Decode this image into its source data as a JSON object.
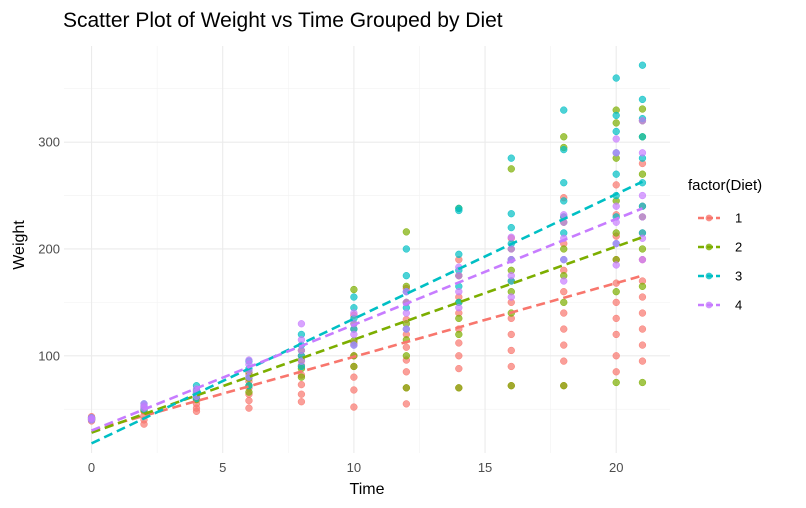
{
  "chart_data": {
    "type": "scatter",
    "title": "Scatter Plot of Weight vs Time Grouped by Diet",
    "xlabel": "Time",
    "ylabel": "Weight",
    "xlim": [
      -1.05,
      22.05
    ],
    "ylim": [
      9,
      390
    ],
    "x_ticks": [
      0,
      5,
      10,
      15,
      20
    ],
    "y_ticks": [
      100,
      200,
      300
    ],
    "grid": true,
    "legend": {
      "title": "factor(Diet)",
      "position": "right"
    },
    "point_opacity": 0.7,
    "trend_lines": "linear fit per diet, dashed",
    "series": [
      {
        "name": "1",
        "color": "#F8766D",
        "trend": {
          "x": [
            0,
            21
          ],
          "y": [
            30,
            175
          ]
        },
        "points": [
          [
            0,
            42
          ],
          [
            0,
            41
          ],
          [
            0,
            40
          ],
          [
            0,
            39
          ],
          [
            0,
            43
          ],
          [
            2,
            36
          ],
          [
            2,
            40
          ],
          [
            2,
            44
          ],
          [
            2,
            48
          ],
          [
            2,
            51
          ],
          [
            2,
            49
          ],
          [
            4,
            48
          ],
          [
            4,
            51
          ],
          [
            4,
            55
          ],
          [
            4,
            59
          ],
          [
            4,
            62
          ],
          [
            6,
            51
          ],
          [
            6,
            58
          ],
          [
            6,
            64
          ],
          [
            6,
            70
          ],
          [
            6,
            76
          ],
          [
            6,
            83
          ],
          [
            8,
            57
          ],
          [
            8,
            64
          ],
          [
            8,
            73
          ],
          [
            8,
            82
          ],
          [
            8,
            91
          ],
          [
            8,
            100
          ],
          [
            10,
            52
          ],
          [
            10,
            68
          ],
          [
            10,
            80
          ],
          [
            10,
            90
          ],
          [
            10,
            100
          ],
          [
            10,
            112
          ],
          [
            10,
            125
          ],
          [
            10,
            138
          ],
          [
            12,
            55
          ],
          [
            12,
            70
          ],
          [
            12,
            85
          ],
          [
            12,
            96
          ],
          [
            12,
            108
          ],
          [
            12,
            120
          ],
          [
            12,
            134
          ],
          [
            12,
            150
          ],
          [
            12,
            163
          ],
          [
            14,
            70
          ],
          [
            14,
            88
          ],
          [
            14,
            100
          ],
          [
            14,
            112
          ],
          [
            14,
            125
          ],
          [
            14,
            140
          ],
          [
            14,
            155
          ],
          [
            14,
            175
          ],
          [
            14,
            190
          ],
          [
            16,
            72
          ],
          [
            16,
            90
          ],
          [
            16,
            105
          ],
          [
            16,
            120
          ],
          [
            16,
            135
          ],
          [
            16,
            150
          ],
          [
            16,
            170
          ],
          [
            16,
            190
          ],
          [
            16,
            210
          ],
          [
            18,
            72
          ],
          [
            18,
            95
          ],
          [
            18,
            110
          ],
          [
            18,
            125
          ],
          [
            18,
            140
          ],
          [
            18,
            160
          ],
          [
            18,
            180
          ],
          [
            18,
            205
          ],
          [
            18,
            230
          ],
          [
            18,
            248
          ],
          [
            20,
            85
          ],
          [
            20,
            100
          ],
          [
            20,
            120
          ],
          [
            20,
            135
          ],
          [
            20,
            150
          ],
          [
            20,
            168
          ],
          [
            20,
            190
          ],
          [
            20,
            212
          ],
          [
            20,
            232
          ],
          [
            20,
            260
          ],
          [
            21,
            95
          ],
          [
            21,
            110
          ],
          [
            21,
            125
          ],
          [
            21,
            140
          ],
          [
            21,
            155
          ],
          [
            21,
            170
          ],
          [
            21,
            190
          ],
          [
            21,
            215
          ],
          [
            21,
            240
          ],
          [
            21,
            280
          ]
        ]
      },
      {
        "name": "2",
        "color": "#7CAE00",
        "trend": {
          "x": [
            0,
            21
          ],
          "y": [
            28,
            211
          ]
        },
        "points": [
          [
            0,
            41
          ],
          [
            0,
            40
          ],
          [
            0,
            42
          ],
          [
            2,
            49
          ],
          [
            2,
            50
          ],
          [
            2,
            52
          ],
          [
            4,
            59
          ],
          [
            4,
            62
          ],
          [
            4,
            65
          ],
          [
            4,
            67
          ],
          [
            6,
            66
          ],
          [
            6,
            72
          ],
          [
            6,
            79
          ],
          [
            6,
            85
          ],
          [
            8,
            80
          ],
          [
            8,
            88
          ],
          [
            8,
            96
          ],
          [
            8,
            105
          ],
          [
            10,
            90
          ],
          [
            10,
            100
          ],
          [
            10,
            114
          ],
          [
            10,
            130
          ],
          [
            10,
            162
          ],
          [
            12,
            70
          ],
          [
            12,
            100
          ],
          [
            12,
            115
          ],
          [
            12,
            130
          ],
          [
            12,
            150
          ],
          [
            12,
            165
          ],
          [
            12,
            216
          ],
          [
            14,
            70
          ],
          [
            14,
            120
          ],
          [
            14,
            135
          ],
          [
            14,
            150
          ],
          [
            14,
            175
          ],
          [
            14,
            238
          ],
          [
            16,
            72
          ],
          [
            16,
            140
          ],
          [
            16,
            160
          ],
          [
            16,
            180
          ],
          [
            16,
            200
          ],
          [
            16,
            275
          ],
          [
            18,
            72
          ],
          [
            18,
            150
          ],
          [
            18,
            175
          ],
          [
            18,
            200
          ],
          [
            18,
            225
          ],
          [
            18,
            295
          ],
          [
            18,
            305
          ],
          [
            20,
            75
          ],
          [
            20,
            160
          ],
          [
            20,
            190
          ],
          [
            20,
            215
          ],
          [
            20,
            245
          ],
          [
            20,
            285
          ],
          [
            20,
            318
          ],
          [
            20,
            330
          ],
          [
            21,
            75
          ],
          [
            21,
            165
          ],
          [
            21,
            200
          ],
          [
            21,
            230
          ],
          [
            21,
            270
          ],
          [
            21,
            305
          ],
          [
            21,
            320
          ],
          [
            21,
            331
          ]
        ]
      },
      {
        "name": "3",
        "color": "#00BFC4",
        "trend": {
          "x": [
            0,
            21
          ],
          "y": [
            18,
            263
          ]
        },
        "points": [
          [
            0,
            41
          ],
          [
            0,
            42
          ],
          [
            0,
            40
          ],
          [
            2,
            50
          ],
          [
            2,
            53
          ],
          [
            2,
            55
          ],
          [
            4,
            60
          ],
          [
            4,
            65
          ],
          [
            4,
            68
          ],
          [
            4,
            72
          ],
          [
            6,
            72
          ],
          [
            6,
            80
          ],
          [
            6,
            88
          ],
          [
            6,
            95
          ],
          [
            8,
            90
          ],
          [
            8,
            100
          ],
          [
            8,
            110
          ],
          [
            8,
            120
          ],
          [
            10,
            110
          ],
          [
            10,
            125
          ],
          [
            10,
            135
          ],
          [
            10,
            145
          ],
          [
            10,
            155
          ],
          [
            12,
            125
          ],
          [
            12,
            145
          ],
          [
            12,
            160
          ],
          [
            12,
            175
          ],
          [
            12,
            200
          ],
          [
            14,
            150
          ],
          [
            14,
            165
          ],
          [
            14,
            180
          ],
          [
            14,
            195
          ],
          [
            14,
            236
          ],
          [
            14,
            238
          ],
          [
            16,
            170
          ],
          [
            16,
            190
          ],
          [
            16,
            205
          ],
          [
            16,
            220
          ],
          [
            16,
            233
          ],
          [
            16,
            285
          ],
          [
            18,
            190
          ],
          [
            18,
            215
          ],
          [
            18,
            230
          ],
          [
            18,
            245
          ],
          [
            18,
            262
          ],
          [
            18,
            293
          ],
          [
            18,
            330
          ],
          [
            20,
            205
          ],
          [
            20,
            230
          ],
          [
            20,
            250
          ],
          [
            20,
            270
          ],
          [
            20,
            290
          ],
          [
            20,
            310
          ],
          [
            20,
            325
          ],
          [
            20,
            360
          ],
          [
            21,
            215
          ],
          [
            21,
            240
          ],
          [
            21,
            262
          ],
          [
            21,
            285
          ],
          [
            21,
            305
          ],
          [
            21,
            322
          ],
          [
            21,
            340
          ],
          [
            21,
            372
          ]
        ]
      },
      {
        "name": "4",
        "color": "#C77CFF",
        "trend": {
          "x": [
            0,
            21
          ],
          "y": [
            30,
            238
          ]
        },
        "points": [
          [
            0,
            42
          ],
          [
            0,
            41
          ],
          [
            0,
            40
          ],
          [
            2,
            51
          ],
          [
            2,
            53
          ],
          [
            2,
            55
          ],
          [
            4,
            62
          ],
          [
            4,
            66
          ],
          [
            4,
            69
          ],
          [
            6,
            80
          ],
          [
            6,
            86
          ],
          [
            6,
            92
          ],
          [
            6,
            96
          ],
          [
            8,
            95
          ],
          [
            8,
            105
          ],
          [
            8,
            115
          ],
          [
            8,
            130
          ],
          [
            10,
            110
          ],
          [
            10,
            120
          ],
          [
            10,
            130
          ],
          [
            10,
            140
          ],
          [
            12,
            125
          ],
          [
            12,
            140
          ],
          [
            12,
            150
          ],
          [
            12,
            160
          ],
          [
            14,
            145
          ],
          [
            14,
            160
          ],
          [
            14,
            175
          ],
          [
            14,
            183
          ],
          [
            16,
            155
          ],
          [
            16,
            175
          ],
          [
            16,
            190
          ],
          [
            16,
            200
          ],
          [
            16,
            211
          ],
          [
            18,
            170
          ],
          [
            18,
            190
          ],
          [
            18,
            210
          ],
          [
            18,
            225
          ],
          [
            18,
            232
          ],
          [
            20,
            185
          ],
          [
            20,
            205
          ],
          [
            20,
            225
          ],
          [
            20,
            240
          ],
          [
            20,
            290
          ],
          [
            20,
            303
          ],
          [
            21,
            190
          ],
          [
            21,
            210
          ],
          [
            21,
            230
          ],
          [
            21,
            250
          ],
          [
            21,
            290
          ],
          [
            21,
            320
          ]
        ]
      }
    ]
  }
}
